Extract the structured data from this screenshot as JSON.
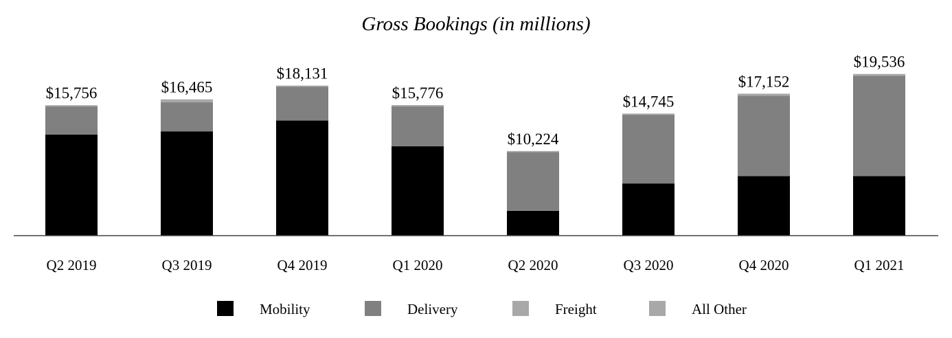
{
  "chart_data": {
    "type": "bar",
    "stacked": true,
    "title": "Gross Bookings (in millions)",
    "xlabel": "",
    "ylabel": "",
    "ylim": [
      0,
      21000
    ],
    "categories": [
      "Q2 2019",
      "Q3 2019",
      "Q4 2019",
      "Q1 2020",
      "Q2 2020",
      "Q3 2020",
      "Q4 2020",
      "Q1 2021"
    ],
    "totals": [
      15756,
      16465,
      18131,
      15776,
      10224,
      14745,
      17152,
      19536
    ],
    "total_labels": [
      "$15,756",
      "$16,465",
      "$18,131",
      "$15,776",
      "$10,224",
      "$14,745",
      "$17,152",
      "$19,536"
    ],
    "series": [
      {
        "name": "Mobility",
        "color": "#000000",
        "values": [
          12200,
          12600,
          13900,
          10800,
          3000,
          6300,
          7200,
          7200
        ]
      },
      {
        "name": "Delivery",
        "color": "#808080",
        "values": [
          3400,
          3500,
          4100,
          4800,
          7100,
          8300,
          9700,
          12100
        ]
      },
      {
        "name": "Freight",
        "color": "#a8a8a8",
        "values": [
          0,
          0,
          0,
          0,
          0,
          0,
          0,
          0
        ]
      },
      {
        "name": "All Other",
        "color": "#a8a8a8",
        "values": [
          156,
          365,
          131,
          176,
          124,
          145,
          252,
          236
        ]
      }
    ],
    "legend": "bottom-center",
    "grid": false
  }
}
